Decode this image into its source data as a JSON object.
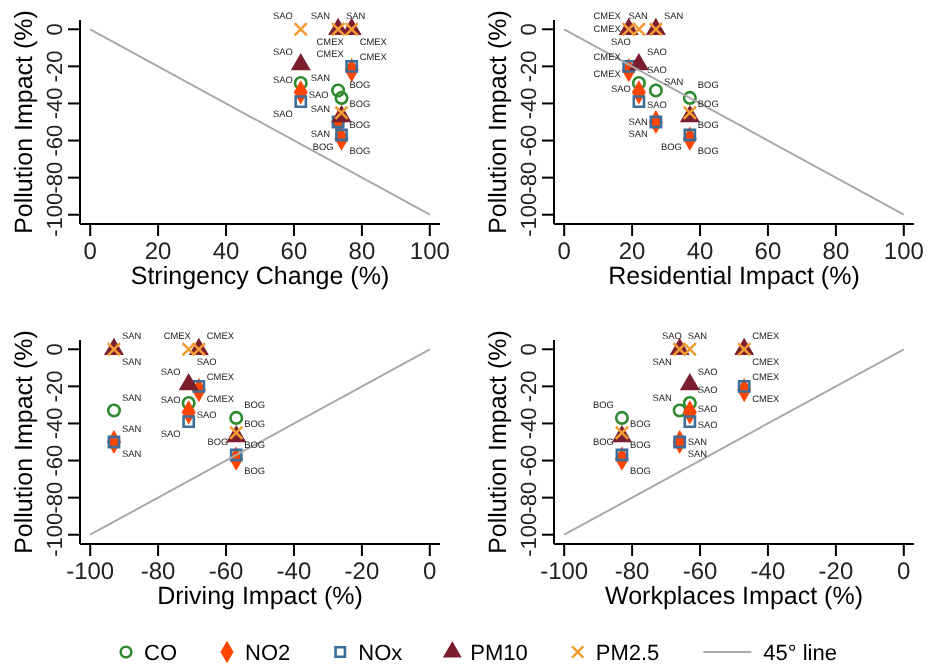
{
  "chart_data": [
    {
      "type": "scatter",
      "xlabel": "Stringency Change (%)",
      "ylabel": "Pollution Impact (%)",
      "xlim": [
        -3,
        103
      ],
      "ylim": [
        -105,
        5
      ],
      "xticks": [
        0,
        20,
        40,
        60,
        80,
        100
      ],
      "yticks": [
        -100,
        -80,
        -60,
        -40,
        -20,
        0
      ],
      "series": [
        {
          "color": "#2e8b2e",
          "marker": "circle",
          "x": [
            62,
            73,
            74
          ],
          "values": [
            -29,
            -33,
            -37
          ],
          "value_labels": [
            "SAO",
            "SAN",
            "BOG"
          ]
        },
        {
          "color": "#ff4500",
          "marker": "diamond",
          "x": [
            62,
            73,
            77,
            74
          ],
          "values": [
            -34,
            -50,
            -22,
            -59
          ],
          "value_labels": [
            "SAO",
            "SAN",
            "CMEX",
            "BOG"
          ]
        },
        {
          "color": "#3b6e99",
          "marker": "square",
          "x": [
            62,
            73,
            77,
            74
          ],
          "values": [
            -39,
            -50,
            -20,
            -57
          ],
          "value_labels": [
            "SAO",
            "SAN",
            "CMEX",
            "BOG"
          ]
        },
        {
          "color": "#7b1f2f",
          "marker": "triangle",
          "x": [
            62,
            73,
            77,
            74
          ],
          "values": [
            -19,
            0,
            0,
            -47
          ],
          "value_labels": [
            "SAO",
            "SAN",
            "CMEX",
            "BOG"
          ]
        },
        {
          "color": "#f39c33",
          "marker": "cross",
          "x": [
            62,
            73,
            77,
            74
          ],
          "values": [
            0,
            0,
            0,
            -45
          ],
          "value_labels": [
            "SAO",
            "SAN",
            "CMEX",
            "BOG"
          ]
        },
        {
          "type": "line",
          "color": "#aaaaaa",
          "x": [
            0,
            100
          ],
          "values": [
            0,
            -100
          ]
        }
      ]
    },
    {
      "type": "scatter",
      "xlabel": "Residential Impact (%)",
      "ylabel": "Pollution Impact (%)",
      "xlim": [
        -3,
        103
      ],
      "ylim": [
        -105,
        5
      ],
      "xticks": [
        0,
        20,
        40,
        60,
        80,
        100
      ],
      "yticks": [
        -100,
        -80,
        -60,
        -40,
        -20,
        0
      ],
      "series": [
        {
          "color": "#2e8b2e",
          "marker": "circle",
          "x": [
            22,
            27,
            37
          ],
          "values": [
            -29,
            -33,
            -37
          ],
          "value_labels": [
            "SAO",
            "SAN",
            "BOG"
          ]
        },
        {
          "color": "#ff4500",
          "marker": "diamond",
          "x": [
            22,
            27,
            19,
            37
          ],
          "values": [
            -34,
            -50,
            -22,
            -59
          ],
          "value_labels": [
            "SAO",
            "SAN",
            "CMEX",
            "BOG"
          ]
        },
        {
          "color": "#3b6e99",
          "marker": "square",
          "x": [
            22,
            27,
            19,
            37
          ],
          "values": [
            -39,
            -50,
            -20,
            -57
          ],
          "value_labels": [
            "SAO",
            "SAN",
            "CMEX",
            "BOG"
          ]
        },
        {
          "color": "#7b1f2f",
          "marker": "triangle",
          "x": [
            22,
            27,
            19,
            37
          ],
          "values": [
            -19,
            0,
            0,
            -47
          ],
          "value_labels": [
            "SAO",
            "SAN",
            "CMEX",
            "BOG"
          ]
        },
        {
          "color": "#f39c33",
          "marker": "cross",
          "x": [
            22,
            27,
            19,
            37
          ],
          "values": [
            0,
            0,
            0,
            -45
          ],
          "value_labels": [
            "SAO",
            "SAN",
            "CMEX",
            "BOG"
          ]
        },
        {
          "type": "line",
          "color": "#aaaaaa",
          "x": [
            0,
            100
          ],
          "values": [
            0,
            -100
          ]
        }
      ]
    },
    {
      "type": "scatter",
      "xlabel": "Driving Impact (%)",
      "ylabel": "Pollution Impact (%)",
      "xlim": [
        -103,
        3
      ],
      "ylim": [
        -105,
        5
      ],
      "xticks": [
        -100,
        -80,
        -60,
        -40,
        -20,
        0
      ],
      "yticks": [
        -100,
        -80,
        -60,
        -40,
        -20,
        0
      ],
      "series": [
        {
          "color": "#2e8b2e",
          "marker": "circle",
          "x": [
            -71,
            -93,
            -57
          ],
          "values": [
            -29,
            -33,
            -37
          ],
          "value_labels": [
            "SAO",
            "SAN",
            "BOG"
          ]
        },
        {
          "color": "#ff4500",
          "marker": "diamond",
          "x": [
            -71,
            -93,
            -68,
            -57
          ],
          "values": [
            -34,
            -50,
            -22,
            -59
          ],
          "value_labels": [
            "SAO",
            "SAN",
            "CMEX",
            "BOG"
          ]
        },
        {
          "color": "#3b6e99",
          "marker": "square",
          "x": [
            -71,
            -93,
            -68,
            -57
          ],
          "values": [
            -39,
            -50,
            -20,
            -57
          ],
          "value_labels": [
            "SAO",
            "SAN",
            "CMEX",
            "BOG"
          ]
        },
        {
          "color": "#7b1f2f",
          "marker": "triangle",
          "x": [
            -71,
            -93,
            -68,
            -57
          ],
          "values": [
            -19,
            0,
            0,
            -47
          ],
          "value_labels": [
            "SAO",
            "SAN",
            "CMEX",
            "BOG"
          ]
        },
        {
          "color": "#f39c33",
          "marker": "cross",
          "x": [
            -71,
            -93,
            -68,
            -57
          ],
          "values": [
            0,
            0,
            0,
            -45
          ],
          "value_labels": [
            "SAO",
            "SAN",
            "CMEX",
            "BOG"
          ]
        },
        {
          "type": "line",
          "color": "#aaaaaa",
          "x": [
            -100,
            0
          ],
          "values": [
            -100,
            0
          ]
        }
      ]
    },
    {
      "type": "scatter",
      "xlabel": "Workplaces Impact (%)",
      "ylabel": "Pollution Impact (%)",
      "xlim": [
        -103,
        3
      ],
      "ylim": [
        -105,
        5
      ],
      "xticks": [
        -100,
        -80,
        -60,
        -40,
        -20,
        0
      ],
      "yticks": [
        -100,
        -80,
        -60,
        -40,
        -20,
        0
      ],
      "legend": "bottom",
      "series": [
        {
          "name": "CO",
          "color": "#2e8b2e",
          "marker": "circle",
          "x": [
            -63,
            -66,
            -83
          ],
          "values": [
            -29,
            -33,
            -37
          ],
          "value_labels": [
            "SAO",
            "SAN",
            "BOG"
          ]
        },
        {
          "name": "NO2",
          "color": "#ff4500",
          "marker": "diamond",
          "x": [
            -63,
            -66,
            -47,
            -83
          ],
          "values": [
            -34,
            -50,
            -22,
            -59
          ],
          "value_labels": [
            "SAO",
            "SAN",
            "CMEX",
            "BOG"
          ]
        },
        {
          "name": "NOx",
          "color": "#3b6e99",
          "marker": "square",
          "x": [
            -63,
            -66,
            -47,
            -83
          ],
          "values": [
            -39,
            -50,
            -20,
            -57
          ],
          "value_labels": [
            "SAO",
            "SAN",
            "CMEX",
            "BOG"
          ]
        },
        {
          "name": "PM10",
          "color": "#7b1f2f",
          "marker": "triangle",
          "x": [
            -63,
            -66,
            -47,
            -83
          ],
          "values": [
            -19,
            0,
            0,
            -47
          ],
          "value_labels": [
            "SAO",
            "SAN",
            "CMEX",
            "BOG"
          ]
        },
        {
          "name": "PM2.5",
          "color": "#f39c33",
          "marker": "cross",
          "x": [
            -63,
            -66,
            -47,
            -83
          ],
          "values": [
            0,
            0,
            0,
            -45
          ],
          "value_labels": [
            "SAO",
            "SAN",
            "CMEX",
            "BOG"
          ]
        },
        {
          "name": "45° line",
          "type": "line",
          "color": "#aaaaaa",
          "x": [
            -100,
            0
          ],
          "values": [
            -100,
            0
          ]
        }
      ]
    }
  ]
}
